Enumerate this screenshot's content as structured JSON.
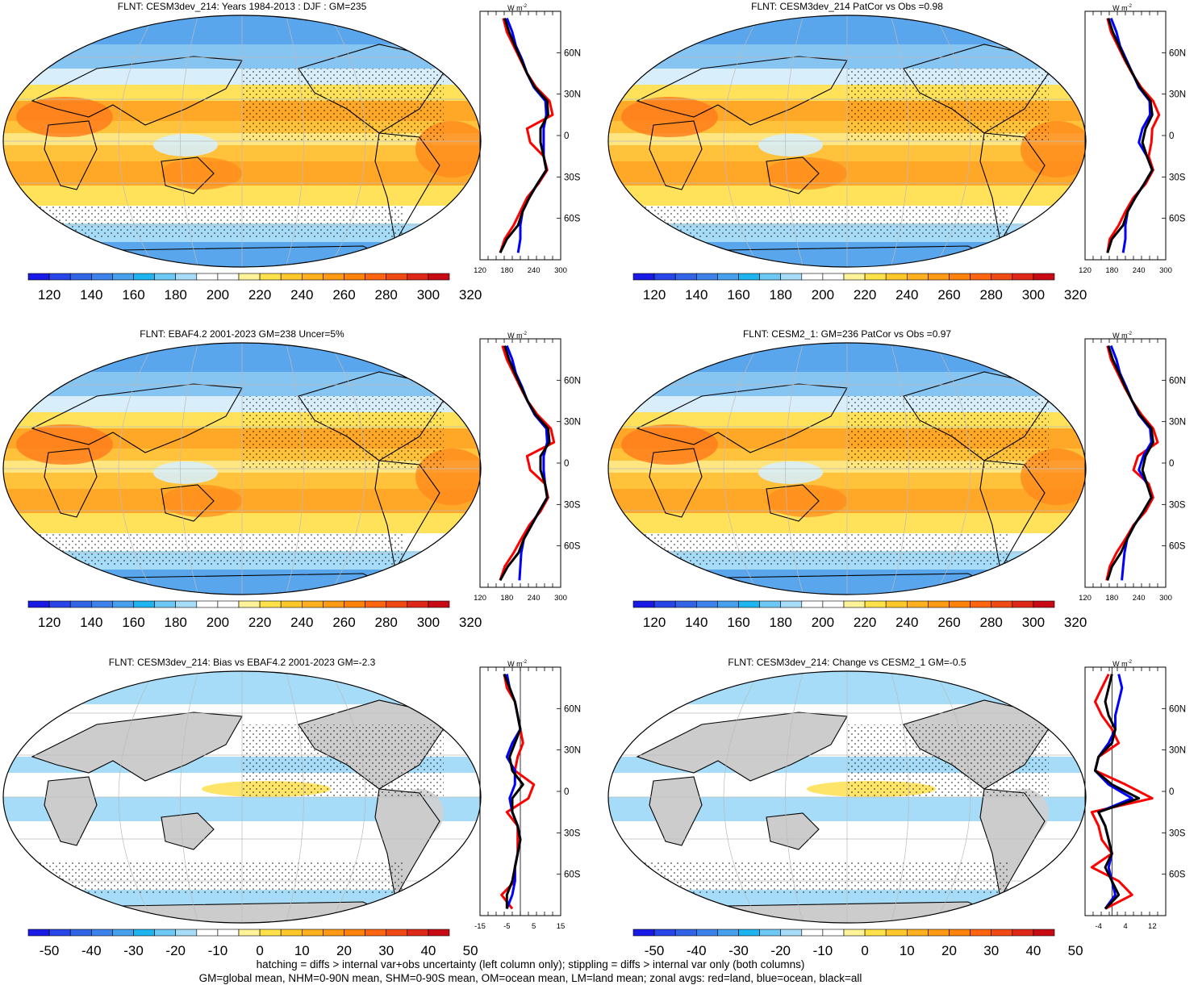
{
  "colors": {
    "abs_scale": [
      "#1a1ae6",
      "#2846e8",
      "#3264e6",
      "#3c82ea",
      "#46a0ee",
      "#1eb4f0",
      "#6ec8f5",
      "#a6dcf8",
      "#ffffff",
      "#ffffff",
      "#fff39a",
      "#ffe14a",
      "#ffc82a",
      "#ffb01e",
      "#ff9a14",
      "#ff820a",
      "#ff6410",
      "#f04a14",
      "#e02818",
      "#c80a14"
    ],
    "diff_scale": [
      "#1a1ae6",
      "#2846e8",
      "#3264e6",
      "#3c82ea",
      "#46a0ee",
      "#1eb4f0",
      "#6ec8f5",
      "#a6dcf8",
      "#ffffff",
      "#ffffff",
      "#fff39a",
      "#ffe14a",
      "#ffc82a",
      "#ffb01e",
      "#ff9a14",
      "#ff820a",
      "#ff6410",
      "#f04a14",
      "#e02818",
      "#c80a14"
    ],
    "land": "red",
    "ocean": "blue",
    "all": "black"
  },
  "panels": [
    {
      "title": "FLNT: CESM3dev_214: Years 1984-2013 : DJF : GM=235",
      "colorbar_labels": [
        "120",
        "140",
        "160",
        "180",
        "200",
        "220",
        "240",
        "260",
        "280",
        "300",
        "320"
      ],
      "zonal": {
        "unit": "W m",
        "unit_sup": "-2",
        "xticks": [
          "120",
          "180",
          "240",
          "300"
        ],
        "yticks": [
          "60N",
          "30N",
          "0",
          "30S",
          "60S"
        ]
      }
    },
    {
      "title": "FLNT: CESM3dev_214 PatCor vs Obs =0.98",
      "colorbar_labels": [
        "120",
        "140",
        "160",
        "180",
        "200",
        "220",
        "240",
        "260",
        "280",
        "300",
        "320"
      ],
      "zonal": {
        "unit": "W m",
        "unit_sup": "-2",
        "xticks": [
          "120",
          "180",
          "240",
          "300"
        ],
        "yticks": [
          "60N",
          "30N",
          "0",
          "30S",
          "60S"
        ]
      }
    },
    {
      "title": "FLNT: EBAF4.2 2001-2023 GM=238 Uncer=5%",
      "colorbar_labels": [
        "120",
        "140",
        "160",
        "180",
        "200",
        "220",
        "240",
        "260",
        "280",
        "300",
        "320"
      ],
      "zonal": {
        "unit": "W m",
        "unit_sup": "-2",
        "xticks": [
          "120",
          "180",
          "240",
          "300"
        ],
        "yticks": [
          "60N",
          "30N",
          "0",
          "30S",
          "60S"
        ]
      }
    },
    {
      "title": "FLNT: CESM2_1: GM=236 PatCor vs Obs =0.97",
      "colorbar_labels": [
        "120",
        "140",
        "160",
        "180",
        "200",
        "220",
        "240",
        "260",
        "280",
        "300",
        "320"
      ],
      "zonal": {
        "unit": "W m",
        "unit_sup": "-2",
        "xticks": [
          "120",
          "180",
          "240",
          "300"
        ],
        "yticks": [
          "60N",
          "30N",
          "0",
          "30S",
          "60S"
        ]
      }
    },
    {
      "title": "FLNT: CESM3dev_214: Bias vs EBAF4.2 2001-2023 GM=-2.3",
      "colorbar_labels": [
        "-50",
        "-40",
        "-30",
        "-20",
        "-10",
        "0",
        "10",
        "20",
        "30",
        "40",
        "50"
      ],
      "zonal": {
        "unit": "W m",
        "unit_sup": "-2",
        "xticks": [
          "-15",
          "-5",
          "5",
          "15"
        ],
        "yticks": [
          "60N",
          "30N",
          "0",
          "30S",
          "60S"
        ]
      }
    },
    {
      "title": "FLNT: CESM3dev_214: Change vs CESM2_1 GM=-0.5",
      "colorbar_labels": [
        "-50",
        "-40",
        "-30",
        "-20",
        "-10",
        "0",
        "10",
        "20",
        "30",
        "40",
        "50"
      ],
      "zonal": {
        "unit": "W m",
        "unit_sup": "-2",
        "xticks": [
          "-4",
          "4",
          "12"
        ],
        "yticks": [
          "60N",
          "30N",
          "0",
          "30S",
          "60S"
        ]
      }
    }
  ],
  "footer": {
    "line1": "hatching = diffs > internal var+obs uncertainty (left column only); stippling = diffs > internal var only (both columns)",
    "line2": "GM=global mean, NHM=0-90N mean, SHM=0-90S mean, OM=ocean mean, LM=land mean; zonal avgs: red=land, blue=ocean, black=all"
  },
  "chart_data": [
    {
      "type": "line",
      "panel": "top-left zonal mean",
      "xlim": [
        120,
        300
      ],
      "ylim": [
        -90,
        90
      ],
      "ylabel": "W m-2",
      "y": [
        -85,
        -75,
        -65,
        -55,
        -45,
        -35,
        -25,
        -15,
        -5,
        5,
        15,
        25,
        35,
        45,
        55,
        65,
        75,
        85
      ],
      "series": [
        {
          "name": "land",
          "values": [
            165,
            175,
            195,
            210,
            225,
            250,
            270,
            262,
            232,
            225,
            282,
            275,
            245,
            225,
            210,
            195,
            180,
            172
          ]
        },
        {
          "name": "ocean",
          "values": [
            205,
            210,
            210,
            215,
            230,
            248,
            268,
            262,
            262,
            262,
            268,
            266,
            240,
            225,
            214,
            200,
            192,
            180
          ]
        },
        {
          "name": "all",
          "values": [
            165,
            180,
            205,
            215,
            230,
            248,
            268,
            262,
            255,
            255,
            272,
            270,
            242,
            225,
            212,
            198,
            185,
            175
          ]
        }
      ]
    },
    {
      "type": "line",
      "panel": "top-right zonal mean",
      "xlim": [
        120,
        300
      ],
      "ylim": [
        -90,
        90
      ],
      "ylabel": "W m-2",
      "y": [
        -85,
        -75,
        -65,
        -55,
        -45,
        -35,
        -25,
        -15,
        -5,
        5,
        15,
        25,
        35,
        45,
        55,
        65,
        75,
        85
      ],
      "series": [
        {
          "name": "land",
          "values": [
            170,
            175,
            195,
            210,
            228,
            255,
            272,
            262,
            268,
            270,
            285,
            272,
            245,
            225,
            208,
            193,
            178,
            170
          ]
        },
        {
          "name": "ocean",
          "values": [
            205,
            210,
            210,
            215,
            232,
            252,
            270,
            258,
            240,
            248,
            265,
            264,
            240,
            226,
            212,
            198,
            190,
            178
          ]
        },
        {
          "name": "all",
          "values": [
            170,
            180,
            205,
            215,
            232,
            252,
            270,
            258,
            248,
            255,
            270,
            266,
            242,
            226,
            210,
            196,
            182,
            172
          ]
        }
      ]
    },
    {
      "type": "line",
      "panel": "middle-left zonal mean",
      "xlim": [
        120,
        300
      ],
      "ylim": [
        -90,
        90
      ],
      "ylabel": "W m-2",
      "y": [
        -85,
        -75,
        -65,
        -55,
        -45,
        -35,
        -25,
        -15,
        -5,
        5,
        15,
        25,
        35,
        45,
        55,
        65,
        75,
        85
      ],
      "series": [
        {
          "name": "land",
          "values": [
            165,
            175,
            195,
            212,
            230,
            255,
            272,
            265,
            232,
            225,
            285,
            278,
            248,
            226,
            210,
            195,
            180,
            170
          ]
        },
        {
          "name": "ocean",
          "values": [
            208,
            210,
            212,
            218,
            235,
            252,
            270,
            265,
            262,
            262,
            270,
            268,
            242,
            226,
            214,
            200,
            192,
            180
          ]
        },
        {
          "name": "all",
          "values": [
            165,
            182,
            206,
            218,
            235,
            252,
            270,
            265,
            255,
            255,
            275,
            272,
            244,
            226,
            212,
            198,
            185,
            175
          ]
        }
      ]
    },
    {
      "type": "line",
      "panel": "middle-right zonal mean",
      "xlim": [
        120,
        300
      ],
      "ylim": [
        -90,
        90
      ],
      "ylabel": "W m-2",
      "y": [
        -85,
        -75,
        -65,
        -55,
        -45,
        -35,
        -25,
        -15,
        -5,
        5,
        15,
        25,
        35,
        45,
        55,
        65,
        75,
        85
      ],
      "series": [
        {
          "name": "land",
          "values": [
            168,
            175,
            190,
            210,
            228,
            255,
            272,
            262,
            228,
            238,
            282,
            272,
            246,
            225,
            208,
            193,
            178,
            170
          ]
        },
        {
          "name": "ocean",
          "values": [
            202,
            205,
            208,
            214,
            230,
            250,
            268,
            258,
            240,
            250,
            268,
            265,
            240,
            225,
            212,
            198,
            190,
            178
          ]
        },
        {
          "name": "all",
          "values": [
            170,
            180,
            200,
            214,
            230,
            250,
            268,
            258,
            248,
            255,
            272,
            268,
            242,
            225,
            210,
            196,
            182,
            172
          ]
        }
      ]
    },
    {
      "type": "line",
      "panel": "bottom-left zonal mean (bias)",
      "xlim": [
        -15,
        15
      ],
      "ylim": [
        -90,
        90
      ],
      "ylabel": "W m-2",
      "y": [
        -85,
        -75,
        -65,
        -55,
        -45,
        -35,
        -25,
        -15,
        -5,
        5,
        15,
        25,
        35,
        45,
        55,
        65,
        75,
        85
      ],
      "series": [
        {
          "name": "land",
          "values": [
            -3,
            -7,
            -2,
            -2,
            -1,
            -1,
            -1,
            -5,
            3,
            5,
            -2,
            -1,
            1,
            0,
            -1,
            -2,
            -5,
            -6
          ]
        },
        {
          "name": "ocean",
          "values": [
            -5,
            -3,
            -2,
            -2,
            -1,
            0,
            -1,
            -3,
            -4,
            -2,
            -2,
            -5,
            -3,
            0,
            -1,
            -2,
            -4,
            -5
          ]
        },
        {
          "name": "all",
          "values": [
            -5,
            -5,
            -3,
            -2,
            -1,
            0,
            -1,
            -3,
            -3,
            1,
            -3,
            -4,
            -2,
            0,
            -1,
            -2,
            -4,
            -6
          ]
        }
      ]
    },
    {
      "type": "line",
      "panel": "bottom-right zonal mean (change)",
      "xlim": [
        -8,
        16
      ],
      "ylim": [
        -90,
        90
      ],
      "ylabel": "W m-2",
      "y": [
        -85,
        -75,
        -65,
        -55,
        -45,
        -35,
        -25,
        -15,
        -5,
        5,
        15,
        25,
        35,
        45,
        55,
        65,
        75,
        85
      ],
      "series": [
        {
          "name": "land",
          "values": [
            -2,
            6,
            2,
            -6,
            0,
            -3,
            -4,
            -6,
            12,
            4,
            -5,
            -4,
            2,
            0,
            -3,
            -5,
            -3,
            -1
          ]
        },
        {
          "name": "ocean",
          "values": [
            -2,
            1,
            0,
            -1,
            0,
            -1,
            -2,
            -4,
            6,
            -1,
            -5,
            -4,
            -1,
            1,
            1,
            2,
            3,
            2
          ]
        },
        {
          "name": "all",
          "values": [
            -2,
            2,
            0,
            -2,
            0,
            -1,
            -2,
            -4,
            8,
            0,
            -5,
            -4,
            0,
            1,
            -1,
            -2,
            -1,
            0
          ]
        }
      ]
    }
  ]
}
